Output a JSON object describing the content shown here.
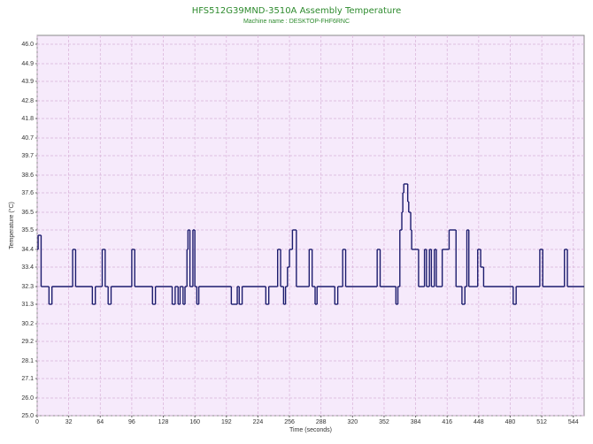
{
  "chart_data": {
    "type": "step",
    "title": "HFS512G39MND-3510A Assembly Temperature",
    "subtitle": "Machine name : DESKTOP-FHF6RNC",
    "x_label": "Time (seconds)",
    "y_label": "Temperature (°C)",
    "xlim": [
      0,
      555
    ],
    "ylim": [
      25,
      46.5
    ],
    "xticks": [
      0,
      32,
      64,
      96,
      128,
      160,
      192,
      224,
      256,
      288,
      320,
      352,
      384,
      416,
      448,
      480,
      512,
      544
    ],
    "yticks": [
      {
        "value": 25,
        "label": "25.0"
      },
      {
        "value": 26,
        "label": "26.0"
      },
      27.1,
      28.1,
      29.2,
      30.2,
      31.3,
      32.3,
      33.4,
      34.4,
      35.5,
      36.5,
      37.6,
      38.6,
      39.7,
      40.7,
      41.8,
      42.8,
      43.9,
      44.9,
      {
        "value": 46,
        "label": "46.0"
      }
    ],
    "grid": true,
    "background": "#f6eafb",
    "grid_color": "#d8b2d8",
    "series": [
      {
        "color": "#1c1c6e",
        "x": [
          0,
          1,
          4,
          12,
          15,
          36,
          39,
          56,
          59,
          66,
          69,
          72,
          75,
          96,
          99,
          117,
          120,
          137,
          140,
          143,
          145,
          148,
          150,
          152,
          153,
          155,
          158,
          160,
          162,
          164,
          197,
          203,
          205,
          208,
          232,
          235,
          244,
          247,
          250,
          252,
          254,
          256,
          259,
          263,
          276,
          279,
          282,
          284,
          302,
          305,
          310,
          313,
          345,
          348,
          364,
          366,
          368,
          370,
          371,
          372,
          376,
          377,
          379,
          380,
          387,
          393,
          395,
          398,
          400,
          403,
          405,
          411,
          418,
          425,
          431,
          434,
          436,
          438,
          447,
          450,
          453,
          483,
          486,
          510,
          513,
          535,
          538,
          555
        ],
        "values": [
          34.4,
          35.2,
          32.3,
          31.3,
          32.3,
          34.4,
          32.3,
          31.3,
          32.3,
          34.4,
          32.3,
          31.3,
          32.3,
          34.4,
          32.3,
          31.3,
          32.3,
          31.3,
          32.3,
          31.3,
          32.3,
          31.3,
          32.3,
          34.4,
          35.5,
          32.3,
          35.5,
          32.3,
          31.3,
          32.3,
          31.3,
          32.3,
          31.3,
          32.3,
          31.3,
          32.3,
          34.4,
          32.3,
          31.3,
          32.3,
          33.4,
          34.4,
          35.5,
          32.3,
          34.4,
          32.3,
          31.3,
          32.3,
          31.3,
          32.3,
          34.4,
          32.3,
          34.4,
          32.3,
          31.3,
          32.3,
          35.5,
          36.5,
          37.6,
          38.1,
          37.1,
          36.5,
          35.5,
          34.4,
          32.3,
          34.4,
          32.3,
          34.4,
          32.3,
          34.4,
          32.3,
          34.4,
          35.5,
          32.3,
          31.3,
          32.3,
          35.5,
          32.3,
          34.4,
          33.4,
          32.3,
          31.3,
          32.3,
          34.4,
          32.3,
          34.4,
          32.3,
          32.3
        ]
      }
    ]
  }
}
